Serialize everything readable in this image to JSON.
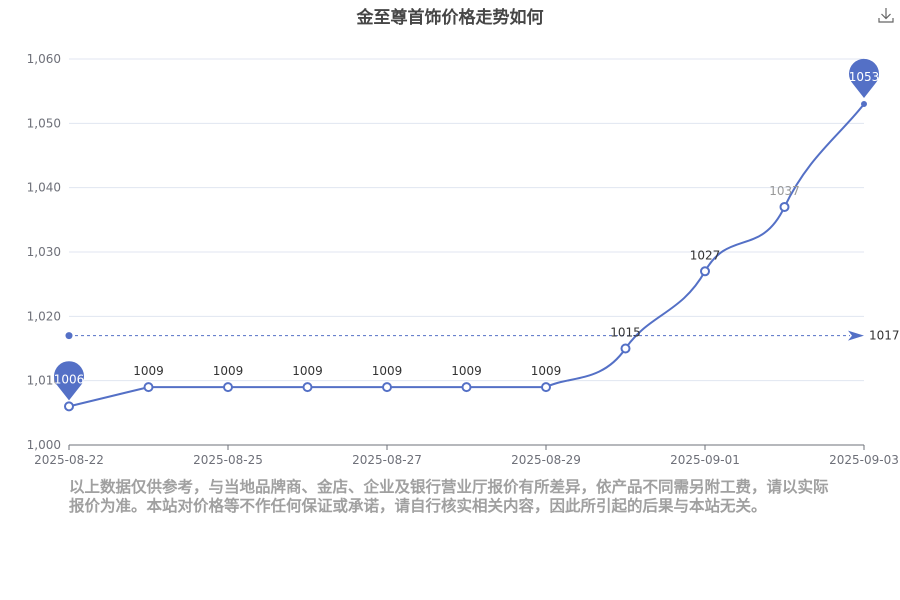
{
  "title": "金至尊首饰价格走势如何",
  "chart_data": {
    "type": "line",
    "title": "金至尊首饰价格走势如何",
    "x_tick_labels": [
      {
        "index": 0,
        "label": "2025-08-22"
      },
      {
        "index": 2,
        "label": "2025-08-25"
      },
      {
        "index": 4,
        "label": "2025-08-27"
      },
      {
        "index": 6,
        "label": "2025-08-29"
      },
      {
        "index": 8,
        "label": "2025-09-01"
      },
      {
        "index": 10,
        "label": "2025-09-03"
      }
    ],
    "values": [
      1006,
      1009,
      1009,
      1009,
      1009,
      1009,
      1009,
      1015,
      1027,
      1037,
      1053
    ],
    "ylim": [
      1000,
      1060
    ],
    "yticks": [
      1000,
      1010,
      1020,
      1030,
      1040,
      1050,
      1060
    ],
    "ytick_labels": [
      "1,000",
      "1,010",
      "1,020",
      "1,030",
      "1,040",
      "1,050",
      "1,060"
    ],
    "smooth": true,
    "grid": true,
    "mark_points": [
      {
        "type": "max",
        "label": "1053"
      },
      {
        "type": "min",
        "label": "1006"
      }
    ],
    "mark_line": {
      "type": "average",
      "value": 1017,
      "label": "1017"
    },
    "color": "#5470c6"
  },
  "toolbox": {
    "download_icon": "download-icon"
  },
  "disclaimer": "以上数据仅供参考，与当地品牌商、金店、企业及银行营业厅报价有所差异，依产品不同需另附工费，请以实际报价为准。本站对价格等不作任何保证或承诺，请自行核实相关内容，因此所引起的后果与本站无关。"
}
